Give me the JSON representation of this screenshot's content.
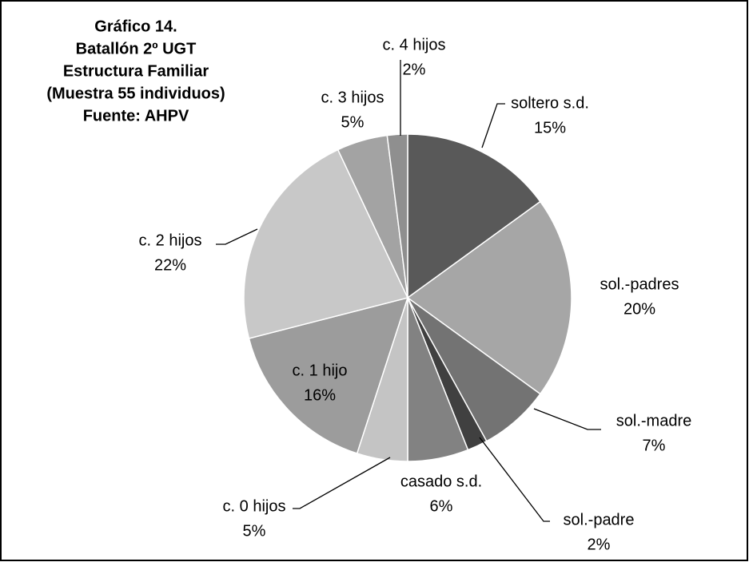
{
  "chart_data": {
    "type": "pie",
    "title": [
      "Gráfico 14.",
      "Batallón 2º UGT",
      "Estructura Familiar",
      "(Muestra 55 individuos)",
      "Fuente: AHPV"
    ],
    "categories": [
      "soltero s.d.",
      "sol.-padres",
      "sol.-madre",
      "sol.-padre",
      "casado s.d.",
      "c. 0 hijos",
      "c. 1 hijo",
      "c. 2 hijos",
      "c. 3 hijos",
      "c. 4 hijos"
    ],
    "values": [
      15,
      20,
      7,
      2,
      6,
      5,
      16,
      22,
      5,
      2
    ],
    "value_labels": [
      "15%",
      "20%",
      "7%",
      "2%",
      "6%",
      "5%",
      "16%",
      "22%",
      "5%",
      "2%"
    ],
    "colors": [
      "#595959",
      "#a6a6a6",
      "#737373",
      "#404040",
      "#828282",
      "#c4c4c4",
      "#9c9c9c",
      "#c8c8c8",
      "#a3a3a3",
      "#8f8f8f"
    ]
  }
}
